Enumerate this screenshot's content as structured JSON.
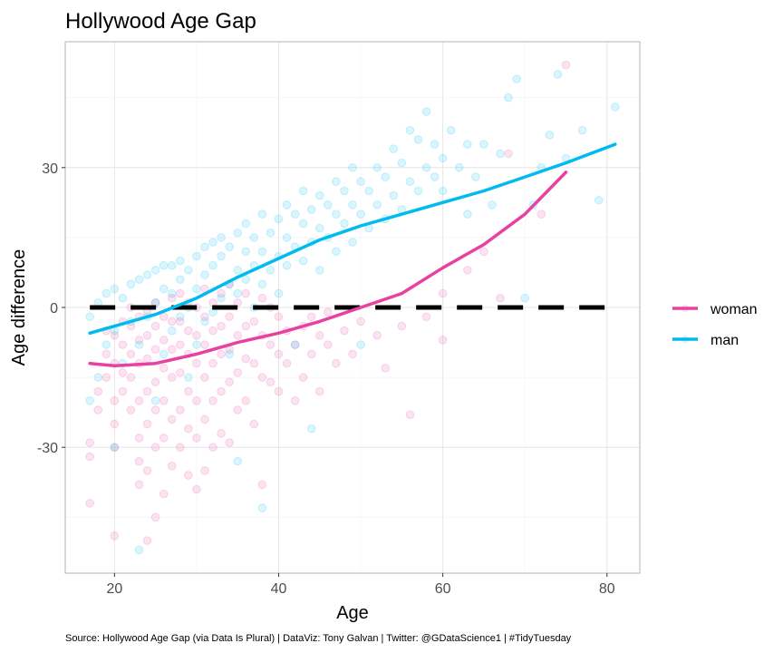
{
  "chart_data": {
    "type": "scatter",
    "title": "Hollywood Age Gap",
    "xlabel": "Age",
    "ylabel": "Age difference",
    "caption": "Source: Hollywood Age Gap (via Data Is Plural) | DataViz: Tony Galvan | Twitter: @GDataScience1 | #TidyTuesday",
    "xlim": [
      14,
      84
    ],
    "ylim": [
      -57,
      57
    ],
    "x_ticks": [
      20,
      40,
      60,
      80
    ],
    "x_tick_labels": [
      "20",
      "40",
      "60",
      "80"
    ],
    "y_ticks": [
      -30,
      0,
      30
    ],
    "y_tick_labels": [
      "-30",
      "0",
      "30"
    ],
    "grid": true,
    "legend_position": "right",
    "reference_line": {
      "y": 0,
      "style": "dashed",
      "color": "#000000"
    },
    "series": [
      {
        "name": "woman",
        "color": "#e8419f",
        "point_alpha": 0.15,
        "smooth_x": [
          17,
          20,
          25,
          30,
          35,
          40,
          45,
          50,
          55,
          60,
          65,
          70,
          75
        ],
        "smooth_y": [
          -12,
          -12.5,
          -12,
          -10,
          -7.5,
          -5.5,
          -3,
          0,
          3,
          8.5,
          13.5,
          20,
          29
        ],
        "points": [
          [
            17,
            -42
          ],
          [
            17,
            -32
          ],
          [
            17,
            -29
          ],
          [
            18,
            -22
          ],
          [
            18,
            -18
          ],
          [
            19,
            -15
          ],
          [
            19,
            -10
          ],
          [
            19,
            -5
          ],
          [
            20,
            -49
          ],
          [
            20,
            -30
          ],
          [
            20,
            -25
          ],
          [
            20,
            -20
          ],
          [
            20,
            -12
          ],
          [
            20,
            -6
          ],
          [
            21,
            -18
          ],
          [
            21,
            -14
          ],
          [
            21,
            -8
          ],
          [
            21,
            -3
          ],
          [
            22,
            -22
          ],
          [
            22,
            -15
          ],
          [
            22,
            -10
          ],
          [
            22,
            -4
          ],
          [
            22,
            0
          ],
          [
            23,
            -38
          ],
          [
            23,
            -33
          ],
          [
            23,
            -28
          ],
          [
            23,
            -20
          ],
          [
            23,
            -12
          ],
          [
            23,
            -7
          ],
          [
            23,
            -2
          ],
          [
            24,
            -50
          ],
          [
            24,
            -35
          ],
          [
            24,
            -25
          ],
          [
            24,
            -18
          ],
          [
            24,
            -11
          ],
          [
            24,
            -6
          ],
          [
            24,
            -1
          ],
          [
            25,
            -45
          ],
          [
            25,
            -30
          ],
          [
            25,
            -22
          ],
          [
            25,
            -16
          ],
          [
            25,
            -9
          ],
          [
            25,
            -4
          ],
          [
            25,
            1
          ],
          [
            26,
            -40
          ],
          [
            26,
            -28
          ],
          [
            26,
            -20
          ],
          [
            26,
            -13
          ],
          [
            26,
            -7
          ],
          [
            26,
            -2
          ],
          [
            27,
            -34
          ],
          [
            27,
            -24
          ],
          [
            27,
            -15
          ],
          [
            27,
            -9
          ],
          [
            27,
            -3
          ],
          [
            27,
            2
          ],
          [
            28,
            -30
          ],
          [
            28,
            -22
          ],
          [
            28,
            -14
          ],
          [
            28,
            -8
          ],
          [
            28,
            -3
          ],
          [
            28,
            3
          ],
          [
            29,
            -36
          ],
          [
            29,
            -26
          ],
          [
            29,
            -18
          ],
          [
            29,
            -10
          ],
          [
            29,
            -5
          ],
          [
            29,
            1
          ],
          [
            30,
            -39
          ],
          [
            30,
            -28
          ],
          [
            30,
            -20
          ],
          [
            30,
            -12
          ],
          [
            30,
            -6
          ],
          [
            30,
            0
          ],
          [
            31,
            -35
          ],
          [
            31,
            -24
          ],
          [
            31,
            -15
          ],
          [
            31,
            -8
          ],
          [
            31,
            -2
          ],
          [
            31,
            4
          ],
          [
            32,
            -30
          ],
          [
            32,
            -20
          ],
          [
            32,
            -12
          ],
          [
            32,
            -5
          ],
          [
            32,
            1
          ],
          [
            33,
            -27
          ],
          [
            33,
            -18
          ],
          [
            33,
            -10
          ],
          [
            33,
            -4
          ],
          [
            33,
            3
          ],
          [
            34,
            -29
          ],
          [
            34,
            -16
          ],
          [
            34,
            -9
          ],
          [
            34,
            -2
          ],
          [
            34,
            5
          ],
          [
            35,
            -22
          ],
          [
            35,
            -14
          ],
          [
            35,
            -6
          ],
          [
            35,
            1
          ],
          [
            36,
            -20
          ],
          [
            36,
            -11
          ],
          [
            36,
            -4
          ],
          [
            36,
            3
          ],
          [
            37,
            -25
          ],
          [
            37,
            -12
          ],
          [
            37,
            -3
          ],
          [
            38,
            -38
          ],
          [
            38,
            -15
          ],
          [
            38,
            -6
          ],
          [
            38,
            2
          ],
          [
            39,
            -16
          ],
          [
            39,
            -8
          ],
          [
            39,
            0
          ],
          [
            40,
            -18
          ],
          [
            40,
            -10
          ],
          [
            40,
            -2
          ],
          [
            41,
            -12
          ],
          [
            41,
            -5
          ],
          [
            42,
            -20
          ],
          [
            42,
            -8
          ],
          [
            43,
            -15
          ],
          [
            43,
            -4
          ],
          [
            44,
            -10
          ],
          [
            44,
            -2
          ],
          [
            45,
            -18
          ],
          [
            45,
            -6
          ],
          [
            46,
            -8
          ],
          [
            46,
            -1
          ],
          [
            47,
            -12
          ],
          [
            48,
            -5
          ],
          [
            49,
            -10
          ],
          [
            50,
            -3
          ],
          [
            52,
            -6
          ],
          [
            53,
            -13
          ],
          [
            55,
            -4
          ],
          [
            56,
            -23
          ],
          [
            58,
            -2
          ],
          [
            60,
            -7
          ],
          [
            60,
            3
          ],
          [
            63,
            8
          ],
          [
            65,
            12
          ],
          [
            67,
            2
          ],
          [
            68,
            33
          ],
          [
            72,
            20
          ],
          [
            75,
            52
          ]
        ]
      },
      {
        "name": "man",
        "color": "#00bbf0",
        "point_alpha": 0.15,
        "smooth_x": [
          17,
          20,
          25,
          30,
          35,
          40,
          45,
          50,
          55,
          60,
          65,
          70,
          75,
          81
        ],
        "smooth_y": [
          -5.5,
          -4,
          -1.5,
          2,
          6.5,
          10.5,
          14.5,
          17.5,
          20,
          22.5,
          25,
          28,
          31,
          35
        ],
        "points": [
          [
            17,
            -20
          ],
          [
            17,
            -2
          ],
          [
            18,
            -15
          ],
          [
            18,
            1
          ],
          [
            19,
            -8
          ],
          [
            19,
            3
          ],
          [
            20,
            -30
          ],
          [
            20,
            -5
          ],
          [
            20,
            4
          ],
          [
            21,
            -12
          ],
          [
            21,
            2
          ],
          [
            22,
            -3
          ],
          [
            22,
            5
          ],
          [
            23,
            -52
          ],
          [
            23,
            -8
          ],
          [
            23,
            6
          ],
          [
            24,
            -2
          ],
          [
            24,
            7
          ],
          [
            25,
            -20
          ],
          [
            25,
            1
          ],
          [
            25,
            8
          ],
          [
            26,
            -10
          ],
          [
            26,
            4
          ],
          [
            26,
            9
          ],
          [
            27,
            -5
          ],
          [
            27,
            3
          ],
          [
            27,
            9
          ],
          [
            28,
            -2
          ],
          [
            28,
            6
          ],
          [
            28,
            10
          ],
          [
            29,
            -15
          ],
          [
            29,
            0
          ],
          [
            29,
            8
          ],
          [
            30,
            -8
          ],
          [
            30,
            4
          ],
          [
            30,
            11
          ],
          [
            31,
            -3
          ],
          [
            31,
            7
          ],
          [
            31,
            13
          ],
          [
            32,
            -1
          ],
          [
            32,
            9
          ],
          [
            32,
            14
          ],
          [
            33,
            2
          ],
          [
            33,
            11
          ],
          [
            33,
            15
          ],
          [
            34,
            -10
          ],
          [
            34,
            5
          ],
          [
            34,
            13
          ],
          [
            35,
            -33
          ],
          [
            35,
            3
          ],
          [
            35,
            8
          ],
          [
            35,
            16
          ],
          [
            36,
            6
          ],
          [
            36,
            12
          ],
          [
            36,
            18
          ],
          [
            37,
            0
          ],
          [
            37,
            9
          ],
          [
            37,
            15
          ],
          [
            38,
            -43
          ],
          [
            38,
            5
          ],
          [
            38,
            12
          ],
          [
            38,
            20
          ],
          [
            39,
            8
          ],
          [
            39,
            16
          ],
          [
            40,
            3
          ],
          [
            40,
            11
          ],
          [
            40,
            19
          ],
          [
            41,
            9
          ],
          [
            41,
            15
          ],
          [
            41,
            22
          ],
          [
            42,
            -8
          ],
          [
            42,
            13
          ],
          [
            42,
            20
          ],
          [
            43,
            10
          ],
          [
            43,
            18
          ],
          [
            43,
            25
          ],
          [
            44,
            -26
          ],
          [
            44,
            14
          ],
          [
            44,
            21
          ],
          [
            45,
            8
          ],
          [
            45,
            17
          ],
          [
            45,
            24
          ],
          [
            46,
            15
          ],
          [
            46,
            22
          ],
          [
            47,
            12
          ],
          [
            47,
            20
          ],
          [
            47,
            27
          ],
          [
            48,
            18
          ],
          [
            48,
            25
          ],
          [
            49,
            14
          ],
          [
            49,
            22
          ],
          [
            49,
            30
          ],
          [
            50,
            -8
          ],
          [
            50,
            20
          ],
          [
            50,
            27
          ],
          [
            51,
            17
          ],
          [
            51,
            25
          ],
          [
            52,
            22
          ],
          [
            52,
            30
          ],
          [
            53,
            19
          ],
          [
            53,
            28
          ],
          [
            54,
            24
          ],
          [
            54,
            34
          ],
          [
            55,
            21
          ],
          [
            55,
            31
          ],
          [
            56,
            27
          ],
          [
            56,
            38
          ],
          [
            57,
            25
          ],
          [
            57,
            36
          ],
          [
            58,
            30
          ],
          [
            58,
            42
          ],
          [
            59,
            28
          ],
          [
            59,
            35
          ],
          [
            60,
            32
          ],
          [
            60,
            25
          ],
          [
            61,
            38
          ],
          [
            62,
            30
          ],
          [
            63,
            20
          ],
          [
            63,
            35
          ],
          [
            64,
            28
          ],
          [
            65,
            35
          ],
          [
            66,
            22
          ],
          [
            67,
            33
          ],
          [
            68,
            45
          ],
          [
            69,
            49
          ],
          [
            70,
            2
          ],
          [
            71,
            22
          ],
          [
            72,
            30
          ],
          [
            73,
            37
          ],
          [
            74,
            50
          ],
          [
            75,
            32
          ],
          [
            77,
            38
          ],
          [
            79,
            23
          ],
          [
            81,
            43
          ]
        ]
      }
    ]
  }
}
